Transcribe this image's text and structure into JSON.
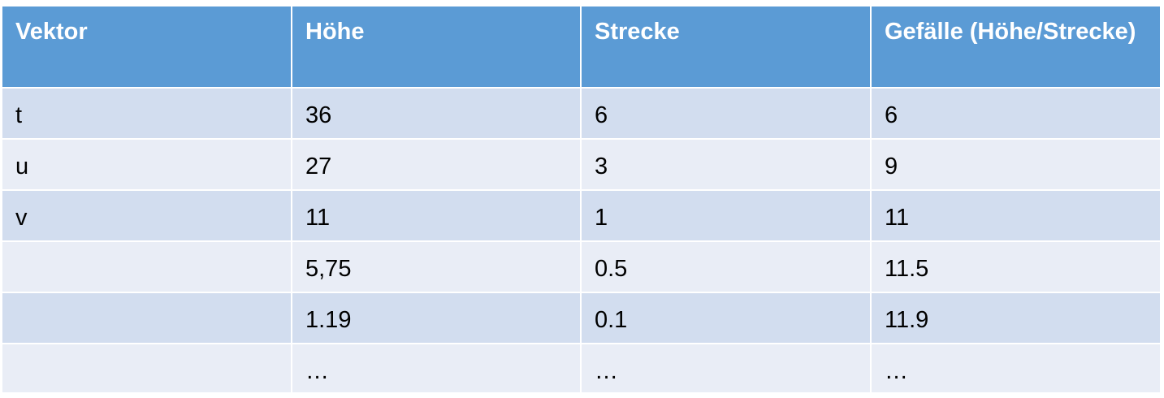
{
  "table": {
    "headers": [
      "Vektor",
      "Höhe",
      "Strecke",
      "Gefälle (Höhe/Strecke)"
    ],
    "rows": [
      [
        "t",
        "36",
        "6",
        "6"
      ],
      [
        "u",
        "27",
        "3",
        "9"
      ],
      [
        "v",
        "11",
        "1",
        "11"
      ],
      [
        "",
        "5,75",
        "0.5",
        "11.5"
      ],
      [
        "",
        "1.19",
        "0.1",
        "11.9"
      ],
      [
        "",
        "…",
        "…",
        "…"
      ]
    ]
  },
  "colors": {
    "header_bg": "#5b9bd5",
    "row_dark": "#d2ddef",
    "row_light": "#e9edf6"
  }
}
